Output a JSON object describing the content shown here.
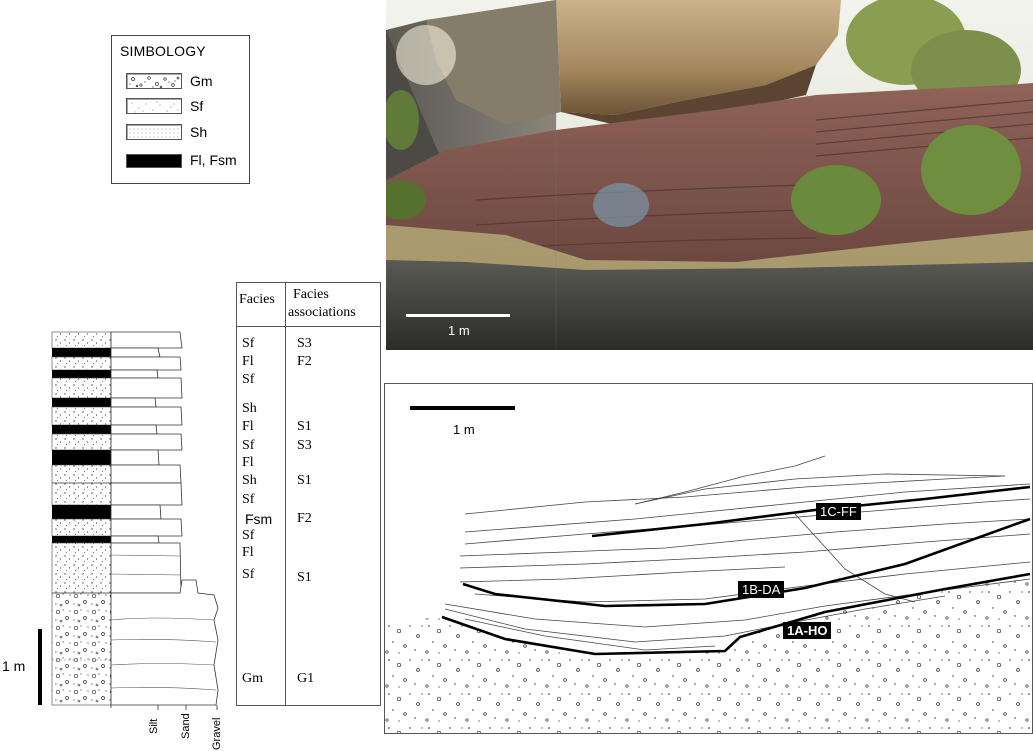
{
  "legend": {
    "title": "SIMBOLOGY",
    "items": [
      {
        "label": "Gm",
        "pattern": "gravel"
      },
      {
        "label": "Sf",
        "pattern": "fine-sand"
      },
      {
        "label": "Sh",
        "pattern": "horizontal-sand"
      },
      {
        "label": "Fl, Fsm",
        "pattern": "solid-black"
      }
    ]
  },
  "column": {
    "scale_label": "1 m",
    "grain_size_labels": [
      "Silt",
      "Sand",
      "Gravel"
    ]
  },
  "facies_table": {
    "header_facies": "Facies",
    "header_assoc_line1": "Facies",
    "header_assoc_line2": "associations",
    "facies": [
      "Sf",
      "Fl",
      "Sf",
      "Sh",
      "Fl",
      "Sf",
      "Fl",
      "Sh",
      "Sf",
      "Fsm",
      "Sf",
      "Fl",
      "Sf",
      "Gm"
    ],
    "associations": [
      "S3",
      "F2",
      "S1",
      "S3",
      "S1",
      "F2",
      "S1",
      "G1"
    ]
  },
  "photo": {
    "scale_label": "1 m"
  },
  "sketch": {
    "scale_label": "1 m",
    "surfaces": [
      "1C-FF",
      "1B-DA",
      "1A-HO"
    ]
  }
}
